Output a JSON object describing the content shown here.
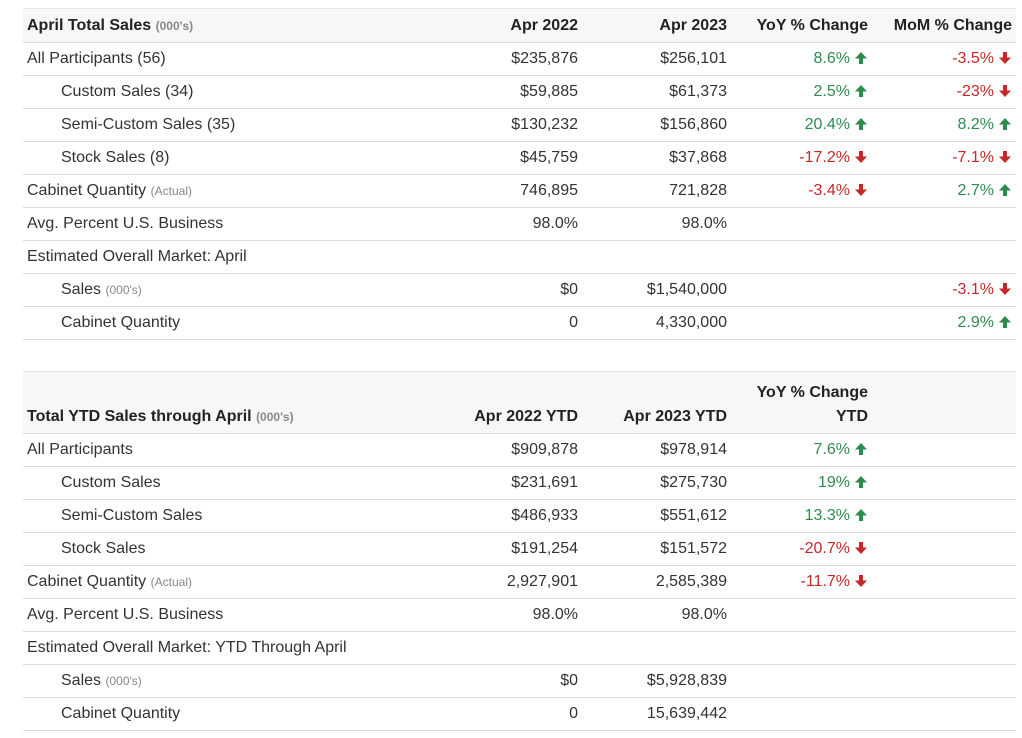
{
  "monthly": {
    "header": {
      "title": "April Total Sales",
      "title_note": "(000's)",
      "col1": "Apr 2022",
      "col2": "Apr 2023",
      "col3": "YoY % Change",
      "col4": "MoM % Change"
    },
    "rows": [
      {
        "label": "All Participants (56)",
        "note": "",
        "indent": false,
        "v1": "$235,876",
        "v2": "$256,101",
        "yoy": "8.6%",
        "yoy_dir": "up",
        "mom": "-3.5%",
        "mom_dir": "down"
      },
      {
        "label": "Custom Sales (34)",
        "note": "",
        "indent": true,
        "v1": "$59,885",
        "v2": "$61,373",
        "yoy": "2.5%",
        "yoy_dir": "up",
        "mom": "-23%",
        "mom_dir": "down"
      },
      {
        "label": "Semi-Custom Sales (35)",
        "note": "",
        "indent": true,
        "v1": "$130,232",
        "v2": "$156,860",
        "yoy": "20.4%",
        "yoy_dir": "up",
        "mom": "8.2%",
        "mom_dir": "up"
      },
      {
        "label": "Stock Sales (8)",
        "note": "",
        "indent": true,
        "v1": "$45,759",
        "v2": "$37,868",
        "yoy": "-17.2%",
        "yoy_dir": "down",
        "mom": "-7.1%",
        "mom_dir": "down"
      },
      {
        "label": "Cabinet Quantity",
        "note": "(Actual)",
        "indent": false,
        "v1": "746,895",
        "v2": "721,828",
        "yoy": "-3.4%",
        "yoy_dir": "down",
        "mom": "2.7%",
        "mom_dir": "up"
      },
      {
        "label": "Avg. Percent U.S. Business",
        "note": "",
        "indent": false,
        "v1": "98.0%",
        "v2": "98.0%",
        "yoy": "",
        "yoy_dir": "",
        "mom": "",
        "mom_dir": ""
      },
      {
        "label": "Estimated Overall Market: April",
        "note": "",
        "indent": false,
        "v1": "",
        "v2": "",
        "yoy": "",
        "yoy_dir": "",
        "mom": "",
        "mom_dir": ""
      },
      {
        "label": "Sales",
        "note": "(000's)",
        "indent": true,
        "v1": "$0",
        "v2": "$1,540,000",
        "yoy": "",
        "yoy_dir": "",
        "mom": "-3.1%",
        "mom_dir": "down"
      },
      {
        "label": "Cabinet Quantity",
        "note": "",
        "indent": true,
        "v1": "0",
        "v2": "4,330,000",
        "yoy": "",
        "yoy_dir": "",
        "mom": "2.9%",
        "mom_dir": "up"
      }
    ]
  },
  "ytd": {
    "header": {
      "title": "Total YTD Sales through April",
      "title_note": "(000's)",
      "col1": "Apr 2022 YTD",
      "col2": "Apr 2023 YTD",
      "col3_line1": "YoY % Change",
      "col3_line2": "YTD",
      "col4": ""
    },
    "rows": [
      {
        "label": "All Participants",
        "note": "",
        "indent": false,
        "v1": "$909,878",
        "v2": "$978,914",
        "yoy": "7.6%",
        "yoy_dir": "up"
      },
      {
        "label": "Custom Sales",
        "note": "",
        "indent": true,
        "v1": "$231,691",
        "v2": "$275,730",
        "yoy": "19%",
        "yoy_dir": "up"
      },
      {
        "label": "Semi-Custom Sales",
        "note": "",
        "indent": true,
        "v1": "$486,933",
        "v2": "$551,612",
        "yoy": "13.3%",
        "yoy_dir": "up"
      },
      {
        "label": "Stock Sales",
        "note": "",
        "indent": true,
        "v1": "$191,254",
        "v2": "$151,572",
        "yoy": "-20.7%",
        "yoy_dir": "down"
      },
      {
        "label": "Cabinet Quantity",
        "note": "(Actual)",
        "indent": false,
        "v1": "2,927,901",
        "v2": "2,585,389",
        "yoy": "-11.7%",
        "yoy_dir": "down"
      },
      {
        "label": "Avg. Percent U.S. Business",
        "note": "",
        "indent": false,
        "v1": "98.0%",
        "v2": "98.0%",
        "yoy": "",
        "yoy_dir": ""
      },
      {
        "label": "Estimated Overall Market: YTD Through April",
        "note": "",
        "indent": false,
        "v1": "",
        "v2": "",
        "yoy": "",
        "yoy_dir": ""
      },
      {
        "label": "Sales",
        "note": "(000's)",
        "indent": true,
        "v1": "$0",
        "v2": "$5,928,839",
        "yoy": "",
        "yoy_dir": ""
      },
      {
        "label": "Cabinet Quantity",
        "note": "",
        "indent": true,
        "v1": "0",
        "v2": "15,639,442",
        "yoy": "",
        "yoy_dir": ""
      }
    ]
  },
  "colors": {
    "positive": "#2e8b4e",
    "negative": "#c62828"
  },
  "icons": {
    "up": "arrow-up-icon",
    "down": "arrow-down-icon"
  }
}
